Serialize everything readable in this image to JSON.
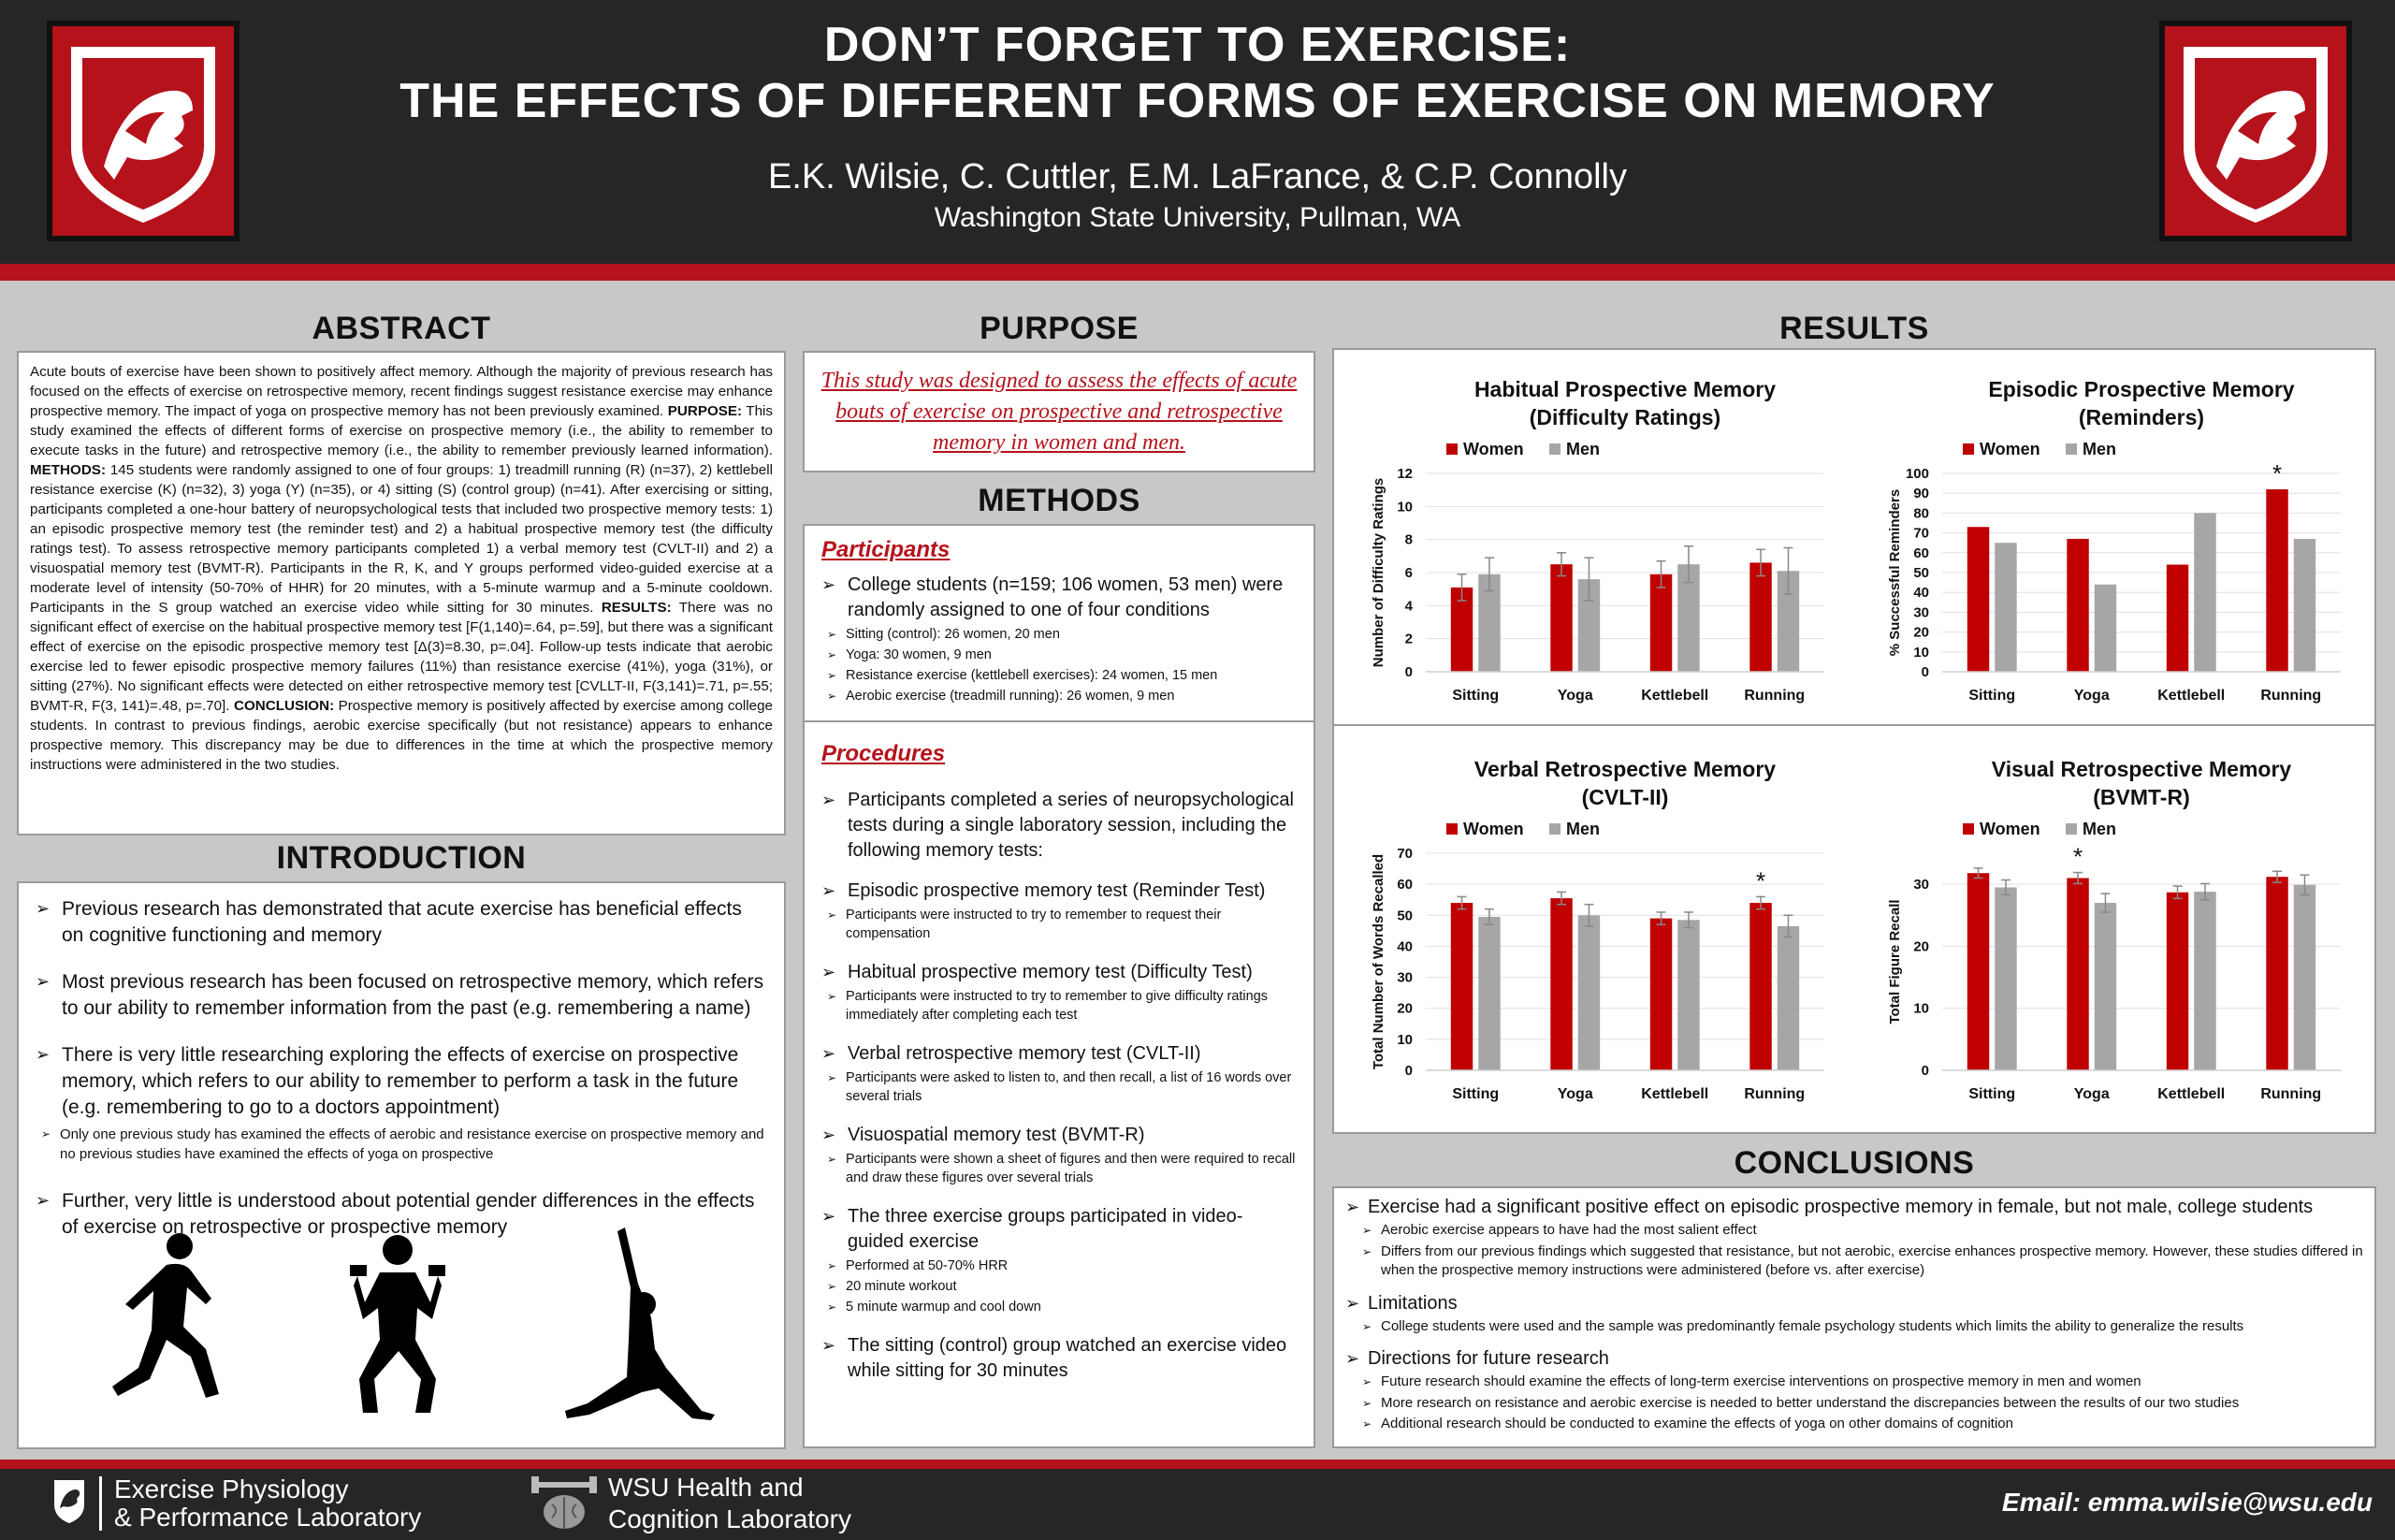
{
  "header": {
    "title_line1": "DON’T FORGET TO EXERCISE:",
    "title_line2": "THE EFFECTS OF DIFFERENT FORMS OF EXERCISE ON MEMORY",
    "authors": "E.K. Wilsie, C. Cuttler, E.M. LaFrance, & C.P. Connolly",
    "affiliation": "Washington State University, Pullman, WA"
  },
  "colors": {
    "accent": "#b5121b",
    "dark": "#262626",
    "gray_bar": "#a6a6a6",
    "background": "#c8c8c8"
  },
  "abstract": {
    "heading": "ABSTRACT",
    "p1": "Acute bouts of exercise have been shown to positively affect memory. Although the majority of previous research has focused on the effects of exercise on retrospective memory, recent findings suggest resistance exercise may enhance prospective memory. The impact of yoga on prospective memory has not been previously examined. ",
    "purpose_label": "PURPOSE:",
    "p2": " This study examined the effects of different forms of exercise on prospective memory (i.e., the ability to remember to execute tasks in the future) and retrospective memory (i.e., the ability to remember previously learned information). ",
    "methods_label": "METHODS:",
    "p3": " 145 students were randomly assigned to one of four groups: 1) treadmill running (R) (n=37), 2) kettlebell resistance exercise (K) (n=32), 3) yoga (Y) (n=35), or 4) sitting (S) (control group) (n=41). After exercising or sitting, participants completed a one-hour battery of neuropsychological tests that included two prospective memory tests: 1) an episodic prospective memory test (the reminder test) and 2) a habitual prospective memory test (the difficulty ratings test). To assess retrospective memory participants completed 1) a verbal memory test (CVLT-II) and 2) a visuospatial memory test (BVMT-R). Participants in the R, K, and Y groups performed video-guided exercise at a moderate level of intensity (50-70% of HHR) for 20 minutes, with a 5-minute warmup and a 5-minute cooldown. Participants in the S group watched an exercise video while sitting for 30 minutes. ",
    "results_label": "RESULTS:",
    "p4": " There was no significant effect of exercise on the habitual prospective memory test [F(1,140)=.64, p=.59], but there was a significant effect of exercise on the episodic prospective memory test [Δ(3)=8.30, p=.04]. Follow-up tests indicate that aerobic exercise led to fewer episodic prospective memory failures (11%) than resistance exercise (41%), yoga (31%), or sitting (27%). No significant effects were detected on either retrospective memory test [CVLLT-II, F(3,141)=.71, p=.55; BVMT-R, F(3, 141)=.48, p=.70]. ",
    "conclusion_label": "CONCLUSION:",
    "p5": " Prospective memory is positively affected by exercise among college students. In contrast to previous findings, aerobic exercise specifically (but not resistance) appears to enhance prospective memory. This discrepancy may be due to differences in the time at which the prospective memory instructions were administered in the two studies."
  },
  "introduction": {
    "heading": "INTRODUCTION",
    "b1": "Previous research has demonstrated that acute exercise has beneficial effects on cognitive functioning and memory",
    "b2": "Most previous research has been focused on retrospective memory, which refers to our ability to remember information from the past (e.g. remembering a name)",
    "b3": "There is very little researching exploring the effects of exercise on prospective memory,  which refers to our ability to remember to perform a task in the future (e.g. remembering to go to a doctors appointment)",
    "b3_sub": "Only one previous study has examined the effects of aerobic and resistance exercise on prospective memory and no previous studies have examined the effects of yoga on prospective",
    "b4": "Further, very little is understood about potential gender differences in the effects of exercise on retrospective or prospective memory"
  },
  "purpose": {
    "heading": "PURPOSE",
    "text": "This study was designed to assess the effects of acute bouts of exercise on prospective and retrospective memory in women and men."
  },
  "methods": {
    "heading": "METHODS",
    "participants_heading": "Participants",
    "p_b1": "College students (n=159; 106 women, 53 men) were randomly assigned to one of four conditions",
    "p_subs": [
      "Sitting (control): 26 women, 20 men",
      "Yoga: 30 women, 9 men",
      "Resistance exercise (kettlebell exercises): 24 women, 15 men",
      "Aerobic exercise (treadmill running): 26 women, 9 men"
    ],
    "procedures_heading": "Procedures",
    "pr_b1": "Participants completed a series of neuropsychological tests during a single laboratory session, including the following memory tests:",
    "pr_b2": "Episodic prospective memory test (Reminder Test)",
    "pr_b2_sub": "Participants were instructed to try to remember to request their compensation",
    "pr_b3": "Habitual prospective memory test (Difficulty Test)",
    "pr_b3_sub": "Participants were instructed to try to remember to give difficulty ratings immediately after completing each test",
    "pr_b4": "Verbal retrospective memory test (CVLT-II)",
    "pr_b4_sub": "Participants were asked to listen to, and then recall, a list of 16 words over several trials",
    "pr_b5": "Visuospatial memory test (BVMT-R)",
    "pr_b5_sub": "Participants were shown a sheet of figures and then were required to recall and draw these figures over several trials",
    "pr_b6": "The three exercise groups participated in video-guided exercise",
    "pr_b6_subs": [
      "Performed at 50-70% HRR",
      "20 minute workout",
      "5 minute warmup and cool down"
    ],
    "pr_b7": "The sitting (control) group watched an exercise video while sitting for 30 minutes"
  },
  "results": {
    "heading": "RESULTS"
  },
  "chart_data": [
    {
      "type": "bar",
      "title": "Habitual Prospective Memory (Difficulty Ratings)",
      "title_line1": "Habitual Prospective Memory",
      "title_line2": "(Difficulty Ratings)",
      "ylabel": "Number of Difficulty Ratings",
      "ylim": [
        0,
        12
      ],
      "yticks": [
        0,
        2,
        4,
        6,
        8,
        10,
        12
      ],
      "categories": [
        "Sitting",
        "Yoga",
        "Kettlebell",
        "Running"
      ],
      "series": [
        {
          "name": "Women",
          "color": "#c00000",
          "values": [
            5.1,
            6.5,
            5.9,
            6.6
          ],
          "errors": [
            0.8,
            0.7,
            0.8,
            0.8
          ]
        },
        {
          "name": "Men",
          "color": "#a6a6a6",
          "values": [
            5.9,
            5.6,
            6.5,
            6.1
          ],
          "errors": [
            1.0,
            1.3,
            1.1,
            1.4
          ]
        }
      ],
      "significance": [],
      "legend": "top-left",
      "grid": true
    },
    {
      "type": "bar",
      "title": "Episodic Prospective Memory (Reminders)",
      "title_line1": "Episodic Prospective Memory",
      "title_line2": "(Reminders)",
      "ylabel": "% Successful Reminders",
      "ylim": [
        0,
        100
      ],
      "yticks": [
        0,
        10,
        20,
        30,
        40,
        50,
        60,
        70,
        80,
        90,
        100
      ],
      "categories": [
        "Sitting",
        "Yoga",
        "Kettlebell",
        "Running"
      ],
      "series": [
        {
          "name": "Women",
          "color": "#c00000",
          "values": [
            73,
            67,
            54,
            92
          ],
          "errors": [
            0,
            0,
            0,
            0
          ]
        },
        {
          "name": "Men",
          "color": "#a6a6a6",
          "values": [
            65,
            44,
            80,
            67
          ],
          "errors": [
            0,
            0,
            0,
            0
          ]
        }
      ],
      "significance": [
        {
          "category": "Running",
          "series": "Women",
          "mark": "*"
        }
      ],
      "legend": "top-left",
      "grid": true
    },
    {
      "type": "bar",
      "title": "Verbal Retrospective Memory (CVLT-II)",
      "title_line1": "Verbal Retrospective Memory",
      "title_line2": "(CVLT-II)",
      "ylabel": "Total Number of Words Recalled",
      "ylim": [
        0,
        70
      ],
      "yticks": [
        0,
        10,
        20,
        30,
        40,
        50,
        60,
        70
      ],
      "categories": [
        "Sitting",
        "Yoga",
        "Kettlebell",
        "Running"
      ],
      "series": [
        {
          "name": "Women",
          "color": "#c00000",
          "values": [
            54,
            55.5,
            49,
            54
          ],
          "errors": [
            2,
            2,
            2,
            2
          ]
        },
        {
          "name": "Men",
          "color": "#a6a6a6",
          "values": [
            49.5,
            50,
            48.5,
            46.5
          ],
          "errors": [
            2.5,
            3.5,
            2.5,
            3.5
          ]
        }
      ],
      "significance": [
        {
          "category": "Running",
          "series": "Women",
          "mark": "*"
        }
      ],
      "legend": "top-left",
      "grid": true
    },
    {
      "type": "bar",
      "title": "Visual Retrospective Memory (BVMT-R)",
      "title_line1": "Visual Retrospective Memory",
      "title_line2": "(BVMT-R)",
      "ylabel": "Total Figure Recall",
      "ylim": [
        0,
        35
      ],
      "yticks": [
        0,
        10,
        20,
        30
      ],
      "categories": [
        "Sitting",
        "Yoga",
        "Kettlebell",
        "Running"
      ],
      "series": [
        {
          "name": "Women",
          "color": "#c00000",
          "values": [
            31.8,
            31,
            28.7,
            31.2
          ],
          "errors": [
            0.8,
            0.9,
            1.0,
            0.9
          ]
        },
        {
          "name": "Men",
          "color": "#a6a6a6",
          "values": [
            29.5,
            27,
            28.8,
            29.9
          ],
          "errors": [
            1.2,
            1.5,
            1.3,
            1.6
          ]
        }
      ],
      "significance": [
        {
          "category": "Yoga",
          "series": "Women",
          "mark": "*"
        }
      ],
      "legend": "top-left",
      "grid": true
    }
  ],
  "conclusions": {
    "heading": "CONCLUSIONS",
    "b1": "Exercise had a significant positive effect on episodic prospective memory in female, but not male, college students",
    "b1_subs": [
      "Aerobic exercise appears to have had the most salient effect",
      "Differs from our previous findings which suggested that resistance, but not aerobic, exercise enhances prospective memory. However, these studies differed in when the prospective memory instructions were administered (before vs. after exercise)"
    ],
    "b2": "Limitations",
    "b2_subs": [
      "College students were used and the sample was predominantly female psychology students which limits the ability to generalize the results"
    ],
    "b3": "Directions for future research",
    "b3_subs": [
      "Future research should examine the effects of long-term exercise interventions on prospective memory in men and women",
      "More research on resistance and aerobic exercise is needed to better understand the discrepancies between the results of our two studies",
      "Additional research should be conducted to examine the effects of yoga on other domains of cognition"
    ]
  },
  "footer": {
    "lab1_line1": "Exercise Physiology",
    "lab1_line2": "& Performance Laboratory",
    "lab2_line1": "WSU Health and",
    "lab2_line2": "Cognition Laboratory",
    "email": "Email: emma.wilsie@wsu.edu"
  }
}
